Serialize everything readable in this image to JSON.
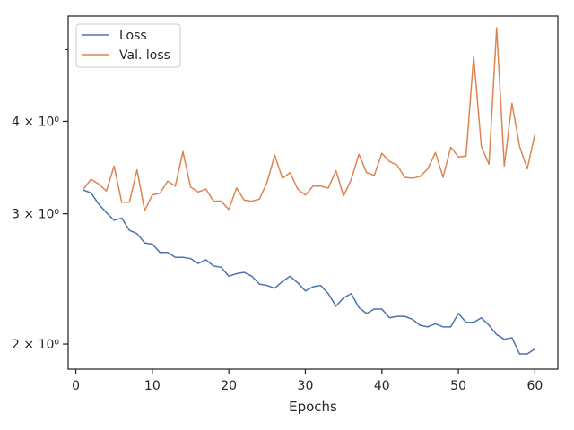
{
  "chart_data": {
    "type": "line",
    "title": "",
    "xlabel": "Epochs",
    "ylabel": "",
    "y_scale": "log",
    "xlim": [
      -1,
      63
    ],
    "ylim": [
      1.85,
      5.55
    ],
    "grid": false,
    "legend_position": "top-left",
    "x_ticks": [
      0,
      10,
      20,
      30,
      40,
      50,
      60
    ],
    "x_tick_labels": [
      "0",
      "10",
      "20",
      "30",
      "40",
      "50",
      "60"
    ],
    "y_ticks": [
      2,
      3,
      4
    ],
    "y_tick_labels": [
      "2 × 10⁰",
      "3 × 10⁰",
      "4 × 10⁰"
    ],
    "y_minor_ticks": [
      5
    ],
    "x": [
      1,
      2,
      3,
      4,
      5,
      6,
      7,
      8,
      9,
      10,
      11,
      12,
      13,
      14,
      15,
      16,
      17,
      18,
      19,
      20,
      21,
      22,
      23,
      24,
      25,
      26,
      27,
      28,
      29,
      30,
      31,
      32,
      33,
      34,
      35,
      36,
      37,
      38,
      39,
      40,
      41,
      42,
      43,
      44,
      45,
      46,
      47,
      48,
      49,
      50,
      51,
      52,
      53,
      54,
      55,
      56,
      57,
      58,
      59,
      60
    ],
    "series": [
      {
        "name": "Loss",
        "color": "#4c72b0",
        "values": [
          3.23,
          3.2,
          3.09,
          3.01,
          2.94,
          2.96,
          2.85,
          2.82,
          2.74,
          2.73,
          2.66,
          2.66,
          2.62,
          2.62,
          2.61,
          2.57,
          2.6,
          2.55,
          2.54,
          2.47,
          2.49,
          2.5,
          2.47,
          2.41,
          2.4,
          2.38,
          2.43,
          2.47,
          2.42,
          2.36,
          2.39,
          2.4,
          2.34,
          2.25,
          2.31,
          2.34,
          2.24,
          2.2,
          2.23,
          2.23,
          2.17,
          2.18,
          2.18,
          2.16,
          2.12,
          2.11,
          2.13,
          2.11,
          2.11,
          2.2,
          2.14,
          2.14,
          2.17,
          2.12,
          2.06,
          2.03,
          2.04,
          1.94,
          1.94,
          1.97
        ]
      },
      {
        "name": "Val. loss",
        "color": "#dd8452",
        "values": [
          3.24,
          3.34,
          3.29,
          3.22,
          3.48,
          3.11,
          3.11,
          3.44,
          3.03,
          3.18,
          3.2,
          3.32,
          3.27,
          3.64,
          3.26,
          3.21,
          3.24,
          3.12,
          3.12,
          3.04,
          3.25,
          3.13,
          3.12,
          3.14,
          3.31,
          3.6,
          3.35,
          3.41,
          3.24,
          3.18,
          3.27,
          3.27,
          3.25,
          3.43,
          3.17,
          3.34,
          3.61,
          3.41,
          3.38,
          3.62,
          3.53,
          3.49,
          3.36,
          3.35,
          3.37,
          3.45,
          3.63,
          3.36,
          3.69,
          3.58,
          3.59,
          4.9,
          3.7,
          3.5,
          5.35,
          3.48,
          4.23,
          3.7,
          3.45,
          3.84
        ]
      }
    ]
  }
}
